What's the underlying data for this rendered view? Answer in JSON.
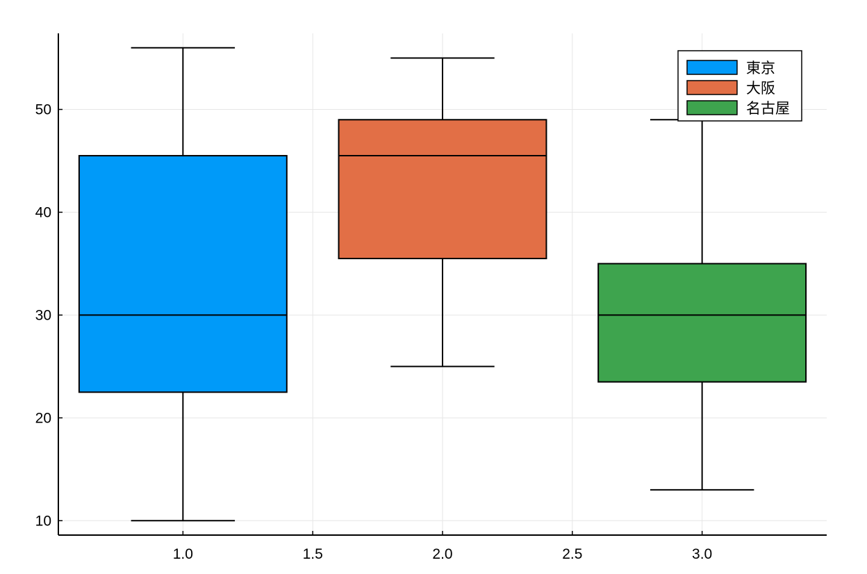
{
  "chart_data": {
    "type": "box",
    "title": "",
    "xlabel": "",
    "ylabel": "",
    "xlim": [
      0.52,
      3.48
    ],
    "ylim": [
      8.6,
      57.4
    ],
    "x_ticks": [
      1.0,
      1.5,
      2.0,
      2.5,
      3.0
    ],
    "x_tick_labels": [
      "1.0",
      "1.5",
      "2.0",
      "2.5",
      "3.0"
    ],
    "y_ticks": [
      10,
      20,
      30,
      40,
      50
    ],
    "y_tick_labels": [
      "10",
      "20",
      "30",
      "40",
      "50"
    ],
    "grid": true,
    "legend_position": "top-right",
    "series": [
      {
        "name": "東京",
        "x": 1,
        "whisker_low": 10,
        "q1": 22.5,
        "median": 30,
        "q3": 45.5,
        "whisker_high": 56,
        "color": "#009AF9"
      },
      {
        "name": "大阪",
        "x": 2,
        "whisker_low": 25,
        "q1": 35.5,
        "median": 45.5,
        "q3": 49,
        "whisker_high": 55,
        "color": "#E26F46"
      },
      {
        "name": "名古屋",
        "x": 3,
        "whisker_low": 13,
        "q1": 23.5,
        "median": 30,
        "q3": 35,
        "whisker_high": 49,
        "color": "#3EA44E"
      }
    ]
  }
}
